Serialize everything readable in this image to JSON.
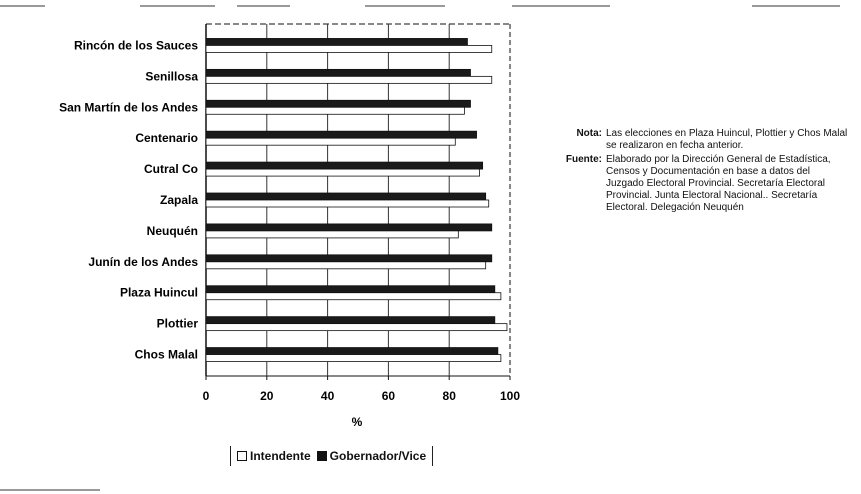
{
  "chart_data": {
    "type": "bar",
    "orientation": "horizontal",
    "categories": [
      "Rincón de los Sauces",
      "Senillosa",
      "San Martín de los Andes",
      "Centenario",
      "Cutral Co",
      "Zapala",
      "Neuquén",
      "Junín de los Andes",
      "Plaza Huincul",
      "Plottier",
      "Chos Malal"
    ],
    "series": [
      {
        "name": "Intendente",
        "color": "#ffffff",
        "values": [
          94,
          94,
          85,
          82,
          90,
          93,
          83,
          92,
          97,
          99,
          97
        ]
      },
      {
        "name": "Gobernador/Vice",
        "color": "#1a1a1a",
        "values": [
          86,
          87,
          87,
          89,
          91,
          92,
          94,
          94,
          95,
          95,
          96
        ]
      }
    ],
    "xlabel": "%",
    "xlim": [
      0,
      100
    ],
    "xticks": [
      0,
      20,
      40,
      60,
      80,
      100
    ],
    "grid": true,
    "legend_position": "bottom"
  },
  "notes": {
    "nota_label": "Nota:",
    "nota_text": "Las elecciones en Plaza Huincul, Plottier y Chos Malal se realizaron en fecha anterior.",
    "fuente_label": "Fuente:",
    "fuente_text": "Elaborado por la Dirección General de Estadística, Censos y Documentación en base a datos del Juzgado Electoral Provincial. Secretaría Electoral Provincial. Junta Electoral Nacional.. Secretaría Electoral. Delegación Neuquén"
  }
}
